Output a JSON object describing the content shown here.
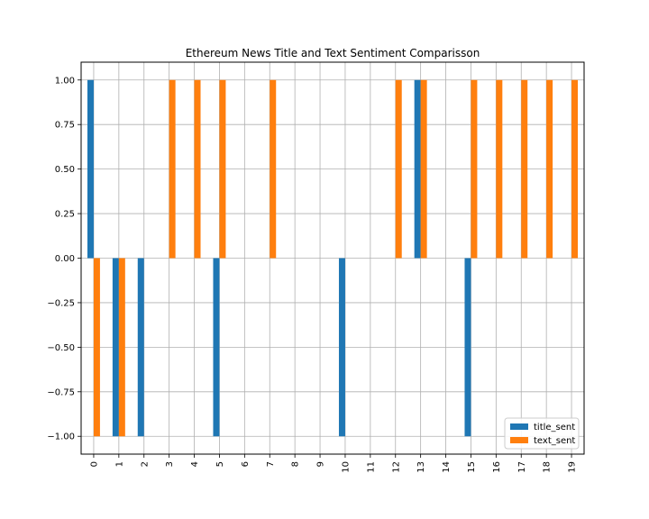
{
  "chart_data": {
    "type": "bar",
    "title": "Ethereum News Title and Text Sentiment Comparisson",
    "xlabel": "",
    "ylabel": "",
    "categories": [
      "0",
      "1",
      "2",
      "3",
      "4",
      "5",
      "6",
      "7",
      "8",
      "9",
      "10",
      "11",
      "12",
      "13",
      "14",
      "15",
      "16",
      "17",
      "18",
      "19"
    ],
    "series": [
      {
        "name": "title_sent",
        "color": "#1f77b4",
        "values": [
          1,
          -1,
          -1,
          0,
          0,
          -1,
          0,
          0,
          0,
          0,
          -1,
          0,
          0,
          1,
          0,
          -1,
          0,
          0,
          0,
          0
        ]
      },
      {
        "name": "text_sent",
        "color": "#ff7f0e",
        "values": [
          -1,
          -1,
          0,
          1,
          1,
          1,
          0,
          1,
          0,
          0,
          0,
          0,
          1,
          1,
          0,
          1,
          1,
          1,
          1,
          1
        ]
      }
    ],
    "ylim": [
      -1.1,
      1.1
    ],
    "yticks": [
      -1.0,
      -0.75,
      -0.5,
      -0.25,
      0.0,
      0.25,
      0.5,
      0.75,
      1.0
    ],
    "ytick_labels": [
      "−1.00",
      "−0.75",
      "−0.50",
      "−0.25",
      "0.00",
      "0.25",
      "0.50",
      "0.75",
      "1.00"
    ],
    "grid": true,
    "legend_position": "bottom-right"
  }
}
